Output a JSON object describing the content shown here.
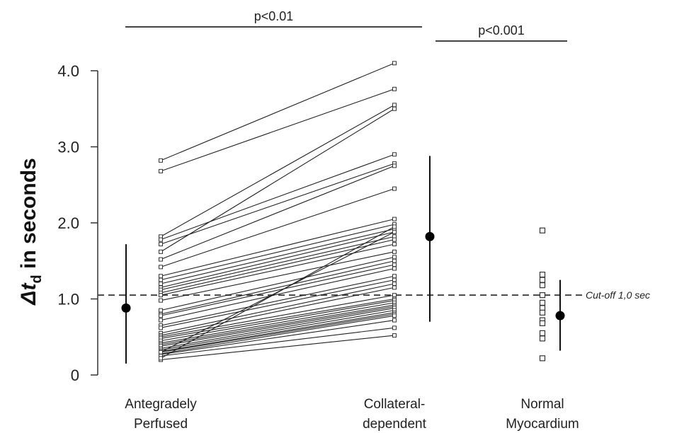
{
  "chart_data": {
    "type": "scatter",
    "ylabel": {
      "delta": "Δt",
      "sub": "d",
      "rest": " in seconds"
    },
    "ylim": [
      0,
      4.0
    ],
    "yticks": [
      0,
      1.0,
      2.0,
      3.0,
      4.0
    ],
    "ytick_labels": [
      "0",
      "1.0",
      "2.0",
      "3.0",
      "4.0"
    ],
    "categories": [
      {
        "key": "ante",
        "line1": "Antegradely",
        "line2": "Perfused"
      },
      {
        "key": "coll",
        "line1": "Collateral-",
        "line2": "dependent"
      },
      {
        "key": "norm",
        "line1": "Normal",
        "line2": "Myocardium"
      }
    ],
    "paired_lines": [
      [
        2.82,
        4.1
      ],
      [
        2.68,
        3.76
      ],
      [
        1.82,
        3.55
      ],
      [
        1.78,
        2.9
      ],
      [
        1.72,
        2.78
      ],
      [
        1.62,
        3.5
      ],
      [
        1.52,
        2.75
      ],
      [
        1.42,
        2.45
      ],
      [
        1.3,
        2.05
      ],
      [
        1.25,
        1.98
      ],
      [
        1.2,
        1.92
      ],
      [
        1.15,
        1.88
      ],
      [
        1.12,
        1.82
      ],
      [
        1.08,
        1.78
      ],
      [
        1.05,
        1.72
      ],
      [
        0.98,
        1.62
      ],
      [
        0.85,
        1.55
      ],
      [
        0.8,
        1.5
      ],
      [
        0.78,
        1.45
      ],
      [
        0.72,
        1.4
      ],
      [
        0.65,
        1.3
      ],
      [
        0.62,
        1.25
      ],
      [
        0.55,
        1.2
      ],
      [
        0.52,
        1.15
      ],
      [
        0.5,
        1.05
      ],
      [
        0.48,
        1.0
      ],
      [
        0.45,
        0.98
      ],
      [
        0.42,
        0.95
      ],
      [
        0.4,
        0.92
      ],
      [
        0.38,
        0.9
      ],
      [
        0.35,
        0.88
      ],
      [
        0.33,
        0.85
      ],
      [
        0.31,
        0.82
      ],
      [
        0.3,
        0.8
      ],
      [
        0.28,
        0.78
      ],
      [
        0.27,
        0.72
      ],
      [
        0.25,
        0.62
      ],
      [
        0.2,
        0.52
      ],
      [
        0.22,
        1.95
      ],
      [
        0.3,
        1.88
      ]
    ],
    "normal_points": [
      1.9,
      1.32,
      1.25,
      1.18,
      1.05,
      0.95,
      0.88,
      0.82,
      0.72,
      0.68,
      0.55,
      0.48,
      0.22
    ],
    "summary": [
      {
        "category": "ante",
        "mean": 0.88,
        "low": 0.15,
        "high": 1.72
      },
      {
        "category": "coll",
        "mean": 1.82,
        "low": 0.7,
        "high": 2.88
      },
      {
        "category": "norm",
        "mean": 0.78,
        "low": 0.32,
        "high": 1.25
      }
    ],
    "cutoff": {
      "value": 1.05,
      "label": "Cut-off 1,0 sec"
    },
    "significance": [
      {
        "label": "p<0.01"
      },
      {
        "label": "p<0.001"
      }
    ]
  }
}
